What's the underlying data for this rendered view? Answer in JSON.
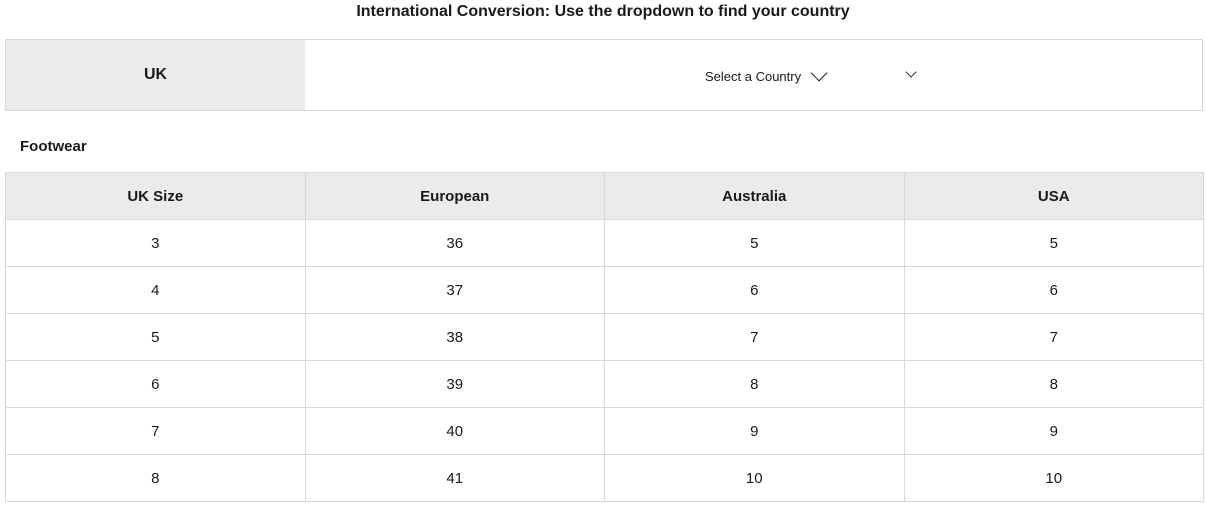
{
  "heading": "International Conversion: Use the dropdown to find your country",
  "country_bar": {
    "current": "UK",
    "select_label": "Select a Country"
  },
  "section_title": "Footwear",
  "table": {
    "headers": [
      "UK Size",
      "European",
      "Australia",
      "USA"
    ],
    "rows": [
      [
        "3",
        "36",
        "5",
        "5"
      ],
      [
        "4",
        "37",
        "6",
        "6"
      ],
      [
        "5",
        "38",
        "7",
        "7"
      ],
      [
        "6",
        "39",
        "8",
        "8"
      ],
      [
        "7",
        "40",
        "9",
        "9"
      ],
      [
        "8",
        "41",
        "10",
        "10"
      ]
    ]
  }
}
